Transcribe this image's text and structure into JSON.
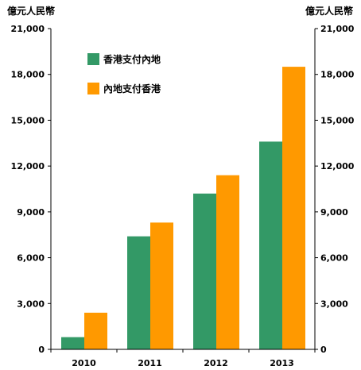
{
  "chart_data": {
    "type": "bar",
    "unit_left": "億元人民幣",
    "unit_right": "億元人民幣",
    "categories": [
      "2010",
      "2011",
      "2012",
      "2013"
    ],
    "series": [
      {
        "name": "香港支付內地",
        "color": "#339966",
        "values": [
          800,
          7400,
          10200,
          13600
        ]
      },
      {
        "name": "內地支付香港",
        "color": "#FF9900",
        "values": [
          2400,
          8300,
          11400,
          18500
        ]
      }
    ],
    "ylim": [
      0,
      21000
    ],
    "yticks": [
      0,
      3000,
      6000,
      9000,
      12000,
      15000,
      18000,
      21000
    ],
    "ytick_labels": [
      "0",
      "3,000",
      "6,000",
      "9,000",
      "12,000",
      "15,000",
      "18,000",
      "21,000"
    ],
    "legend_position": "top-left",
    "grid": false
  }
}
